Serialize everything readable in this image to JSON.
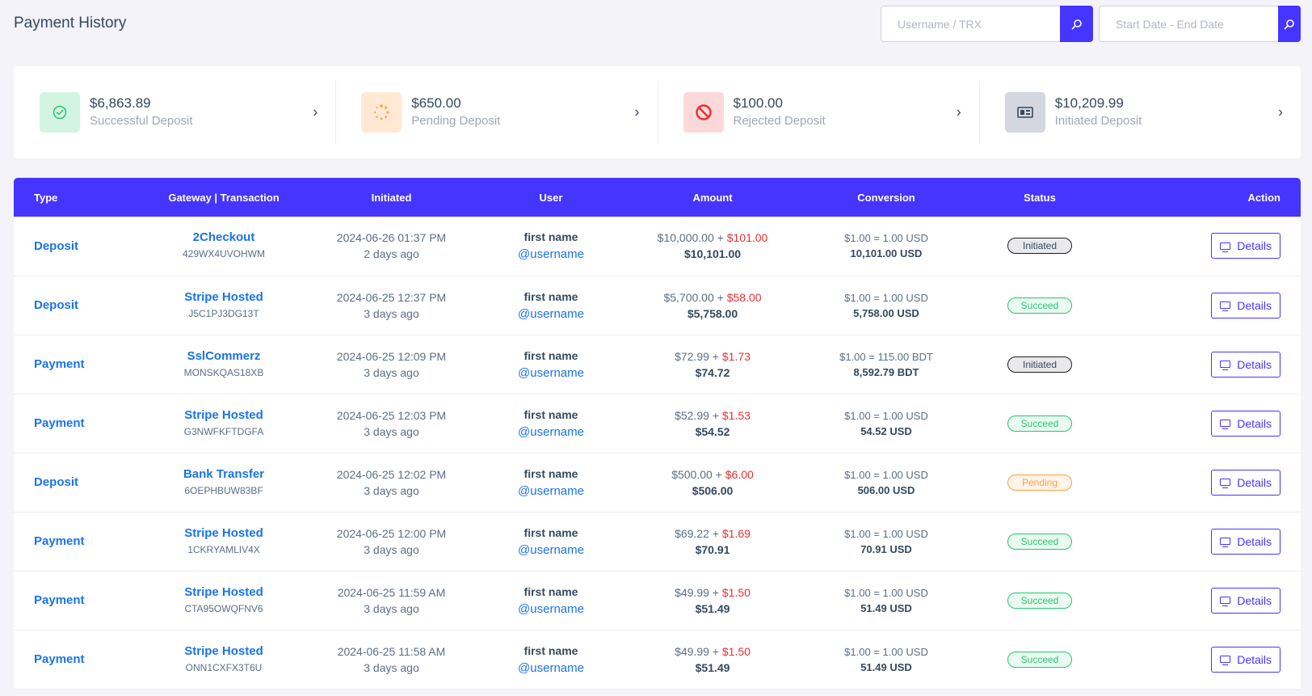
{
  "header": {
    "title": "Payment History",
    "search_username_placeholder": "Username / TRX",
    "search_date_placeholder": "Start Date - End Date"
  },
  "widgets": [
    {
      "amount": "$6,863.89",
      "label": "Successful Deposit",
      "icon": "check-circle-icon",
      "icon_bg": "#d4f4e2",
      "icon_color": "#28c76f"
    },
    {
      "amount": "$650.00",
      "label": "Pending Deposit",
      "icon": "spinner-icon",
      "icon_bg": "#ffe9d4",
      "icon_color": "#ff9f43"
    },
    {
      "amount": "$100.00",
      "label": "Rejected Deposit",
      "icon": "ban-icon",
      "icon_bg": "#fcd9d9",
      "icon_color": "#ea2e2e"
    },
    {
      "amount": "$10,209.99",
      "label": "Initiated Deposit",
      "icon": "money-bill-icon",
      "icon_bg": "#d5d7e0",
      "icon_color": "#34495e"
    }
  ],
  "table": {
    "columns": [
      "Type",
      "Gateway | Transaction",
      "Initiated",
      "User",
      "Amount",
      "Conversion",
      "Status",
      "Action"
    ],
    "rows": [
      {
        "type": "Deposit",
        "gateway": "2Checkout",
        "trx": "429WX4UVOHWM",
        "date": "2024-06-26 01:37 PM",
        "ago": "2 days ago",
        "name": "first name",
        "username": "@username",
        "amount": "$10,000.00",
        "charge": "$101.00",
        "total": "$10,101.00",
        "rate": "$1.00 = 1.00 USD",
        "converted": "10,101.00 USD",
        "status": "Initiated",
        "status_class": "initiated",
        "action": "Details"
      },
      {
        "type": "Deposit",
        "gateway": "Stripe Hosted",
        "trx": "J5C1PJ3DG13T",
        "date": "2024-06-25 12:37 PM",
        "ago": "3 days ago",
        "name": "first name",
        "username": "@username",
        "amount": "$5,700.00",
        "charge": "$58.00",
        "total": "$5,758.00",
        "rate": "$1.00 = 1.00 USD",
        "converted": "5,758.00 USD",
        "status": "Succeed",
        "status_class": "succeed",
        "action": "Details"
      },
      {
        "type": "Payment",
        "gateway": "SslCommerz",
        "trx": "MONSKQAS18XB",
        "date": "2024-06-25 12:09 PM",
        "ago": "3 days ago",
        "name": "first name",
        "username": "@username",
        "amount": "$72.99",
        "charge": "$1.73",
        "total": "$74.72",
        "rate": "$1.00 = 115.00 BDT",
        "converted": "8,592.79 BDT",
        "status": "Initiated",
        "status_class": "initiated",
        "action": "Details"
      },
      {
        "type": "Payment",
        "gateway": "Stripe Hosted",
        "trx": "G3NWFKFTDGFA",
        "date": "2024-06-25 12:03 PM",
        "ago": "3 days ago",
        "name": "first name",
        "username": "@username",
        "amount": "$52.99",
        "charge": "$1.53",
        "total": "$54.52",
        "rate": "$1.00 = 1.00 USD",
        "converted": "54.52 USD",
        "status": "Succeed",
        "status_class": "succeed",
        "action": "Details"
      },
      {
        "type": "Deposit",
        "gateway": "Bank Transfer",
        "trx": "6OEPHBUW83BF",
        "date": "2024-06-25 12:02 PM",
        "ago": "3 days ago",
        "name": "first name",
        "username": "@username",
        "amount": "$500.00",
        "charge": "$6.00",
        "total": "$506.00",
        "rate": "$1.00 = 1.00 USD",
        "converted": "506.00 USD",
        "status": "Pending",
        "status_class": "pending",
        "action": "Details"
      },
      {
        "type": "Payment",
        "gateway": "Stripe Hosted",
        "trx": "1CKRYAMLIV4X",
        "date": "2024-06-25 12:00 PM",
        "ago": "3 days ago",
        "name": "first name",
        "username": "@username",
        "amount": "$69.22",
        "charge": "$1.69",
        "total": "$70.91",
        "rate": "$1.00 = 1.00 USD",
        "converted": "70.91 USD",
        "status": "Succeed",
        "status_class": "succeed",
        "action": "Details"
      },
      {
        "type": "Payment",
        "gateway": "Stripe Hosted",
        "trx": "CTA95OWQFNV6",
        "date": "2024-06-25 11:59 AM",
        "ago": "3 days ago",
        "name": "first name",
        "username": "@username",
        "amount": "$49.99",
        "charge": "$1.50",
        "total": "$51.49",
        "rate": "$1.00 = 1.00 USD",
        "converted": "51.49 USD",
        "status": "Succeed",
        "status_class": "succeed",
        "action": "Details"
      },
      {
        "type": "Payment",
        "gateway": "Stripe Hosted",
        "trx": "ONN1CXFX3T6U",
        "date": "2024-06-25 11:58 AM",
        "ago": "3 days ago",
        "name": "first name",
        "username": "@username",
        "amount": "$49.99",
        "charge": "$1.50",
        "total": "$51.49",
        "rate": "$1.00 = 1.00 USD",
        "converted": "51.49 USD",
        "status": "Succeed",
        "status_class": "succeed",
        "action": "Details"
      }
    ]
  }
}
